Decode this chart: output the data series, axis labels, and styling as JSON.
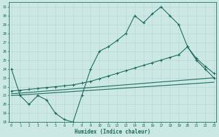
{
  "xlabel": "Humidex (Indice chaleur)",
  "bg_color": "#cce8e5",
  "line_color": "#1a6b5a",
  "grid_color": "#b8d8d5",
  "ylim": [
    18,
    31.5
  ],
  "xlim": [
    -0.3,
    23.3
  ],
  "yticks": [
    18,
    19,
    20,
    21,
    22,
    23,
    24,
    25,
    26,
    27,
    28,
    29,
    30,
    31
  ],
  "xticks": [
    0,
    1,
    2,
    3,
    4,
    5,
    6,
    7,
    8,
    9,
    10,
    11,
    12,
    13,
    14,
    15,
    16,
    17,
    18,
    19,
    20,
    21,
    22,
    23
  ],
  "line1_x": [
    0,
    1,
    2,
    3,
    4,
    5,
    6,
    7,
    8,
    9,
    10,
    11,
    12,
    13,
    14,
    15,
    16,
    17,
    18,
    19,
    20,
    21,
    22,
    23
  ],
  "line1_y": [
    24,
    21,
    20,
    21,
    20.5,
    19,
    18.3,
    18,
    21,
    24,
    26,
    26.5,
    27.2,
    28,
    30,
    29.2,
    30.2,
    31,
    30,
    29,
    26.5,
    25,
    24,
    23
  ],
  "line2_x": [
    0,
    23
  ],
  "line2_y": [
    21.2,
    23.0
  ],
  "line3_x": [
    0,
    1,
    2,
    3,
    4,
    5,
    6,
    7,
    8,
    9,
    10,
    11,
    12,
    13,
    14,
    15,
    16,
    17,
    18,
    19,
    20,
    21,
    22,
    23
  ],
  "line3_y": [
    21.5,
    21.6,
    21.7,
    21.8,
    21.9,
    22.0,
    22.1,
    22.2,
    22.4,
    22.6,
    22.9,
    23.2,
    23.5,
    23.8,
    24.1,
    24.4,
    24.7,
    25.0,
    25.3,
    25.6,
    26.5,
    25.2,
    24.3,
    23.5
  ],
  "line4_x": [
    0,
    23
  ],
  "line4_y": [
    21.0,
    22.5
  ]
}
